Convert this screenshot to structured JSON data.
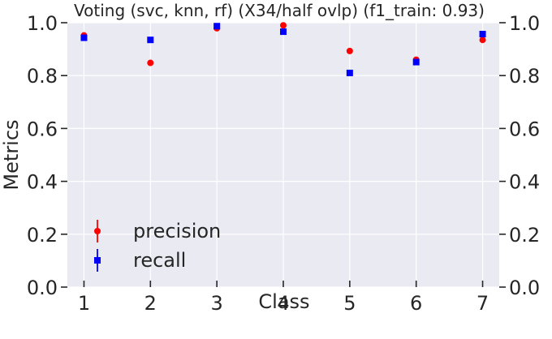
{
  "chart_data": {
    "type": "scatter",
    "title": "Voting (svc, knn, rf) (X34/half ovlp) (f1_train: 0.93)",
    "xlabel": "Class",
    "ylabel": "Metrics",
    "x": [
      1,
      2,
      3,
      4,
      5,
      6,
      7
    ],
    "xlim": [
      0.75,
      7.25
    ],
    "ylim": [
      0.0,
      1.0
    ],
    "xticks": [
      "1",
      "2",
      "3",
      "4",
      "5",
      "6",
      "7"
    ],
    "yticks": [
      "0.0",
      "0.2",
      "0.4",
      "0.6",
      "0.8",
      "1.0"
    ],
    "right_yticks": [
      "0.0",
      "0.2",
      "0.4",
      "0.6",
      "0.8",
      "1.0"
    ],
    "grid": true,
    "legend_position": "lower-left",
    "series": [
      {
        "name": "precision",
        "marker": "circle",
        "color": "#ff0000",
        "values": [
          0.952,
          0.848,
          0.979,
          0.99,
          0.893,
          0.86,
          0.935
        ],
        "error": [
          0.006,
          0.008,
          0.006,
          0.004,
          0.006,
          0.01,
          0.006
        ]
      },
      {
        "name": "recall",
        "marker": "square",
        "color": "#0000ff",
        "values": [
          0.943,
          0.935,
          0.987,
          0.966,
          0.81,
          0.851,
          0.957
        ],
        "error": [
          0.006,
          0.006,
          0.004,
          0.006,
          0.008,
          0.006,
          0.006
        ]
      }
    ]
  },
  "colors": {
    "plot_background": "#eaeaf2",
    "grid": "#ffffff",
    "text": "#262626"
  }
}
